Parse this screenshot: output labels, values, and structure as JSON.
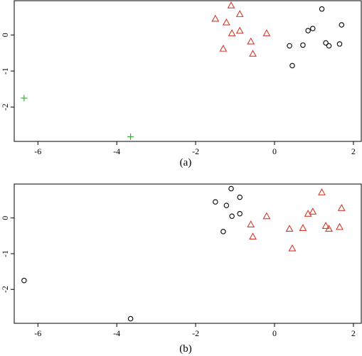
{
  "chart_data": [
    {
      "type": "scatter",
      "caption": "(a)",
      "xlim": [
        -6.6,
        2.2
      ],
      "ylim": [
        -2.95,
        0.95
      ],
      "xticks": [
        -6,
        -4,
        -2,
        0,
        2
      ],
      "yticks": [
        0,
        -1,
        -2
      ],
      "grid": false,
      "series": [
        {
          "marker": "circle",
          "color": "#000000",
          "points": [
            [
              1.2,
              0.72
            ],
            [
              1.7,
              0.28
            ],
            [
              0.97,
              0.18
            ],
            [
              0.85,
              0.12
            ],
            [
              0.72,
              -0.28
            ],
            [
              0.38,
              -0.3
            ],
            [
              1.3,
              -0.22
            ],
            [
              1.38,
              -0.3
            ],
            [
              1.65,
              -0.25
            ],
            [
              0.45,
              -0.85
            ]
          ]
        },
        {
          "marker": "triangle",
          "color": "#d43a2c",
          "points": [
            [
              -1.1,
              0.82
            ],
            [
              -1.5,
              0.45
            ],
            [
              -0.88,
              0.58
            ],
            [
              -1.22,
              0.35
            ],
            [
              -1.08,
              0.05
            ],
            [
              -0.88,
              0.12
            ],
            [
              -0.2,
              0.05
            ],
            [
              -0.6,
              -0.18
            ],
            [
              -1.3,
              -0.38
            ],
            [
              -0.55,
              -0.52
            ]
          ]
        },
        {
          "marker": "plus",
          "color": "#2eb82e",
          "points": [
            [
              -6.35,
              -1.75
            ],
            [
              -3.65,
              -2.82
            ]
          ]
        }
      ]
    },
    {
      "type": "scatter",
      "caption": "(b)",
      "xlim": [
        -6.6,
        2.2
      ],
      "ylim": [
        -2.95,
        0.95
      ],
      "xticks": [
        -6,
        -4,
        -2,
        0,
        2
      ],
      "yticks": [
        0,
        -1,
        -2
      ],
      "grid": false,
      "series": [
        {
          "marker": "circle",
          "color": "#000000",
          "points": [
            [
              -1.1,
              0.82
            ],
            [
              -1.5,
              0.45
            ],
            [
              -0.88,
              0.58
            ],
            [
              -1.22,
              0.35
            ],
            [
              -1.08,
              0.05
            ],
            [
              -0.88,
              0.12
            ],
            [
              -1.3,
              -0.38
            ],
            [
              -6.35,
              -1.75
            ],
            [
              -3.65,
              -2.82
            ]
          ]
        },
        {
          "marker": "triangle",
          "color": "#d43a2c",
          "points": [
            [
              1.2,
              0.72
            ],
            [
              1.7,
              0.28
            ],
            [
              0.97,
              0.18
            ],
            [
              0.85,
              0.12
            ],
            [
              0.72,
              -0.28
            ],
            [
              0.38,
              -0.3
            ],
            [
              1.3,
              -0.22
            ],
            [
              1.38,
              -0.3
            ],
            [
              1.65,
              -0.25
            ],
            [
              0.45,
              -0.85
            ],
            [
              -0.2,
              0.05
            ],
            [
              -0.6,
              -0.18
            ],
            [
              -0.55,
              -0.52
            ]
          ]
        }
      ]
    }
  ]
}
